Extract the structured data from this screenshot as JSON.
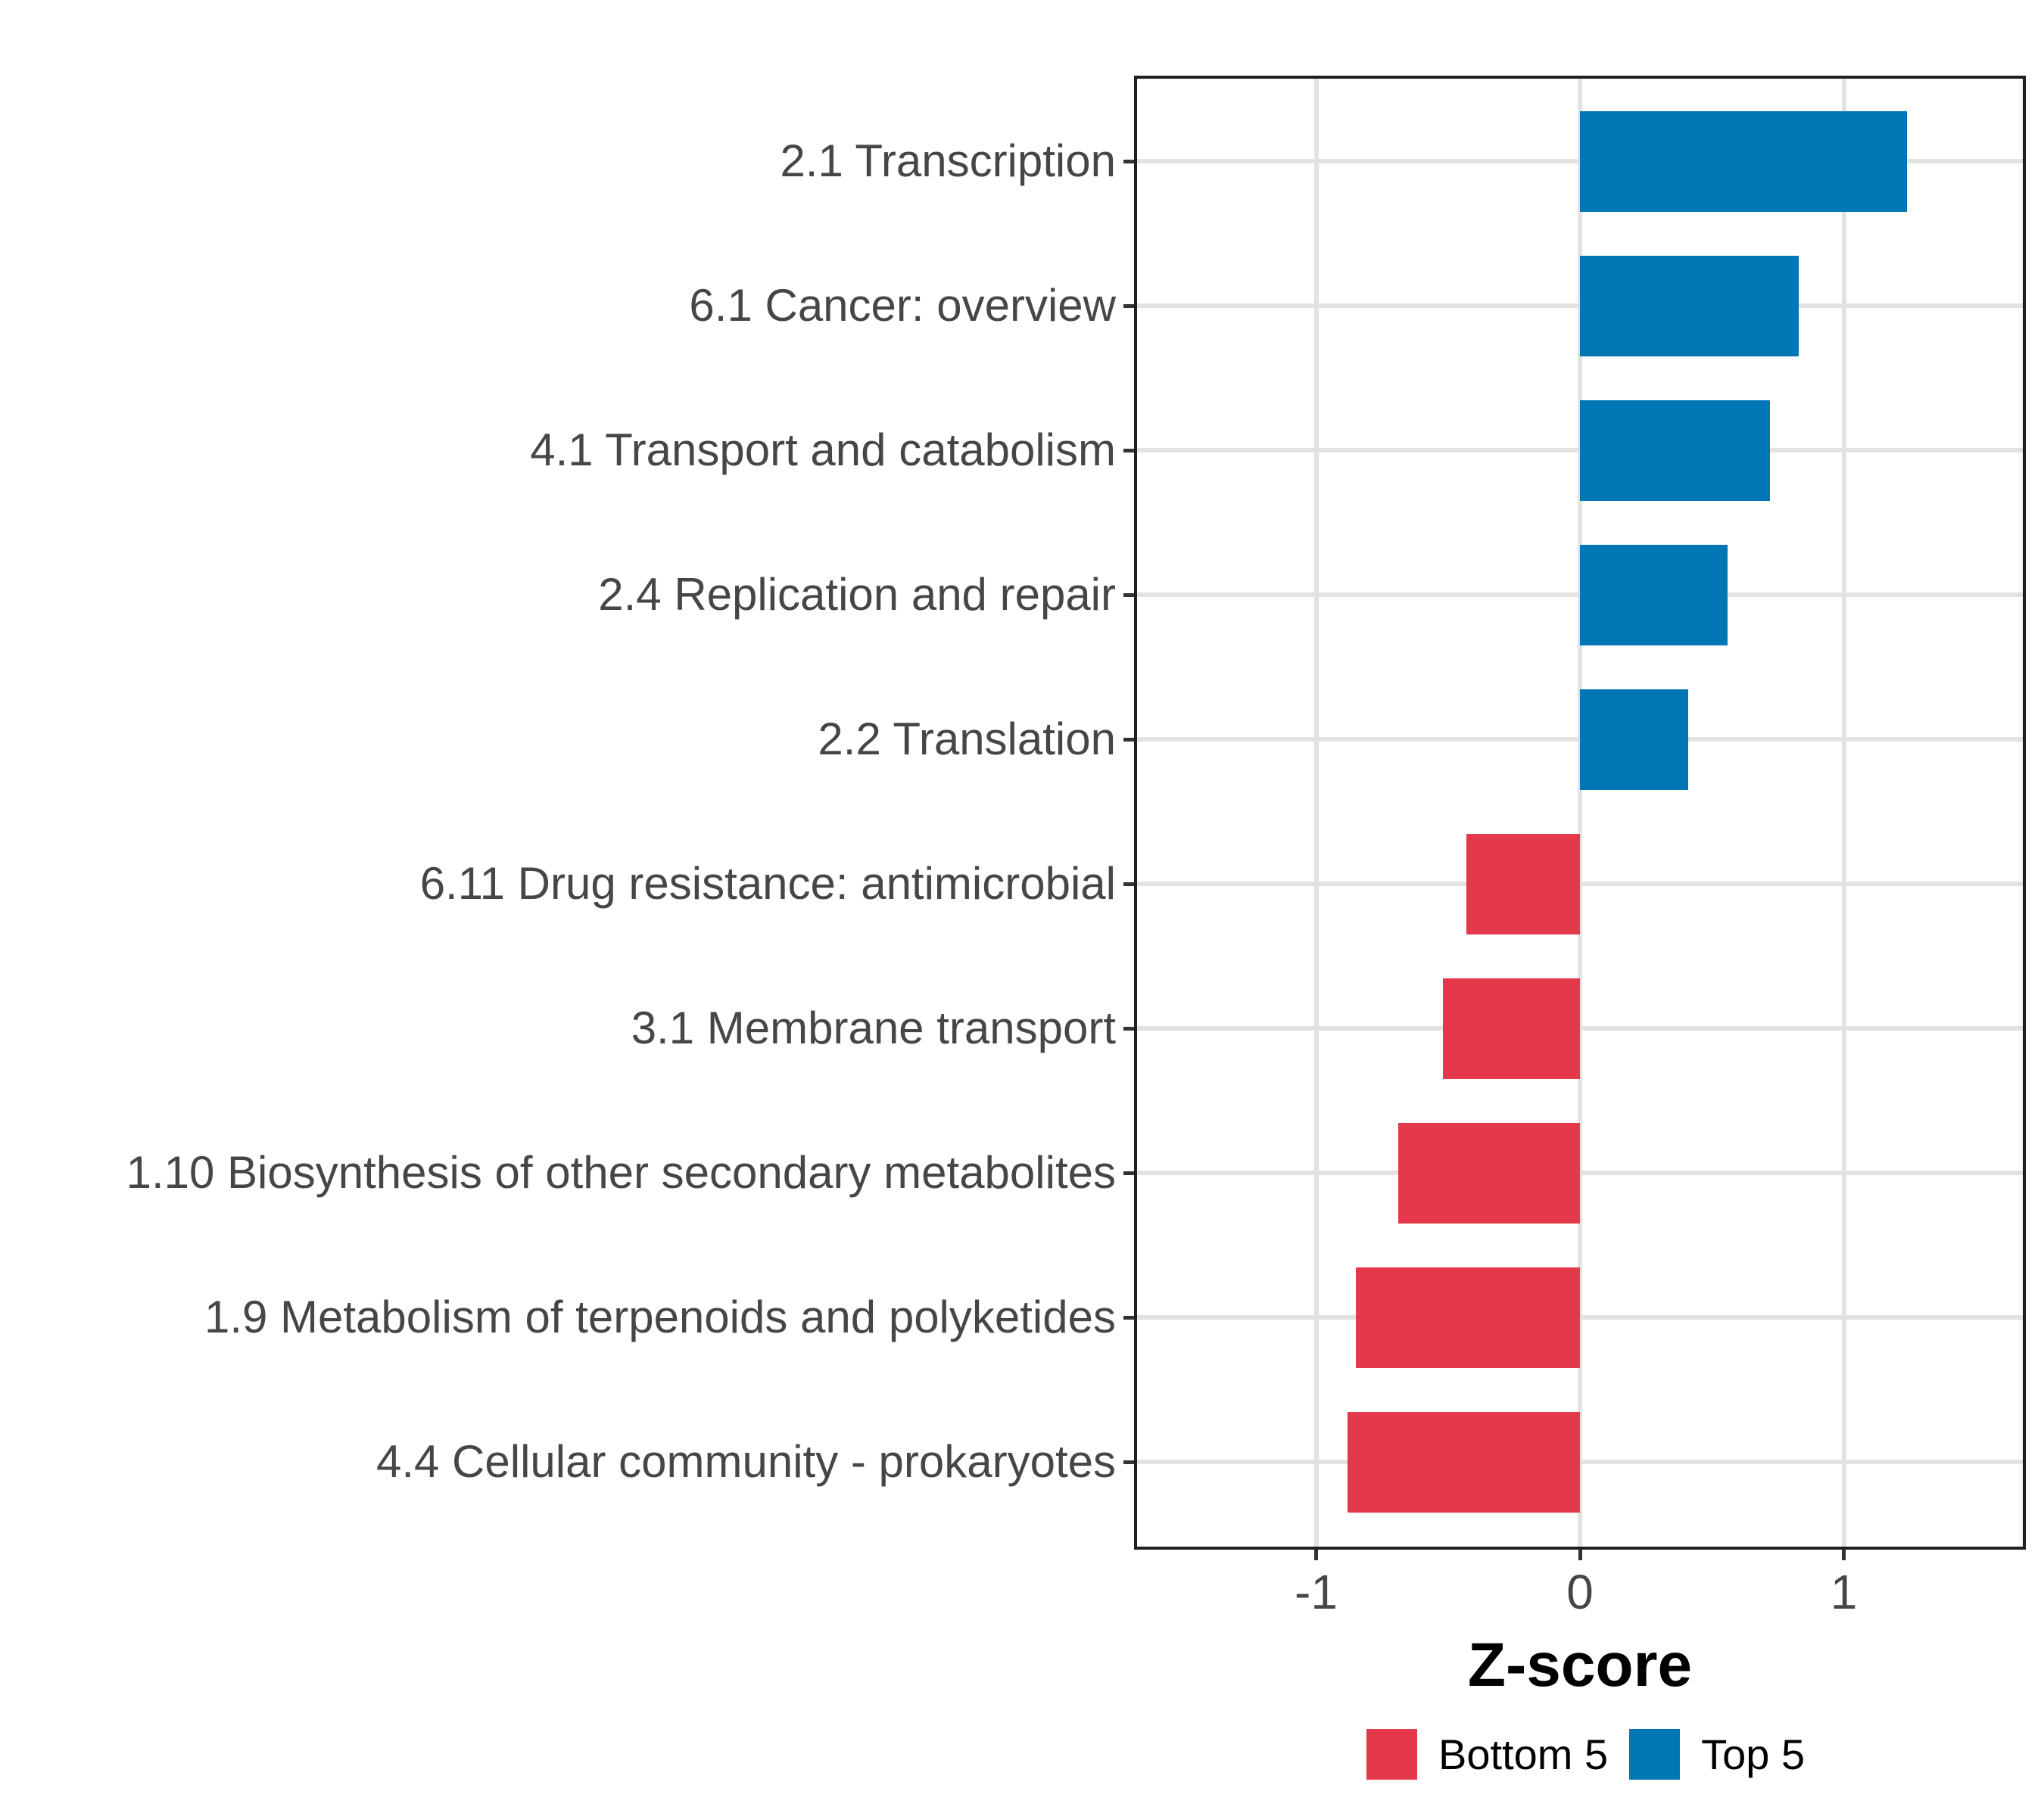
{
  "chart_data": {
    "type": "bar",
    "orientation": "horizontal",
    "title": "",
    "xlabel": "Z-score",
    "ylabel": "",
    "xticks": [
      -1,
      0,
      1
    ],
    "xlim": [
      -1.69,
      1.69
    ],
    "grid": "major-only",
    "legend_position": "bottom",
    "categories": [
      "2.1 Transcription",
      "6.1 Cancer: overview",
      "4.1 Transport and catabolism",
      "2.4 Replication and repair",
      "2.2 Translation",
      "6.11 Drug resistance: antimicrobial",
      "3.1 Membrane transport",
      "1.10 Biosynthesis of other secondary metabolites",
      "1.9 Metabolism of terpenoids and polyketides",
      "4.4 Cellular community - prokaryotes"
    ],
    "values": [
      1.24,
      0.83,
      0.72,
      0.56,
      0.41,
      -0.43,
      -0.52,
      -0.69,
      -0.85,
      -0.88
    ],
    "groups": [
      "Top 5",
      "Top 5",
      "Top 5",
      "Top 5",
      "Top 5",
      "Bottom 5",
      "Bottom 5",
      "Bottom 5",
      "Bottom 5",
      "Bottom 5"
    ],
    "legend": [
      {
        "label": "Bottom 5",
        "color": "#E4394B"
      },
      {
        "label": "Top 5",
        "color": "#0076B4"
      }
    ]
  },
  "colors": {
    "top5": "#0076B4",
    "bottom5": "#E4394B",
    "gridline": "#E2E2E2",
    "panel_border": "#1F1F1F",
    "axis_text": "#464646",
    "tick_mark": "#333333",
    "title_text": "#000000",
    "background": "#FFFFFF"
  }
}
